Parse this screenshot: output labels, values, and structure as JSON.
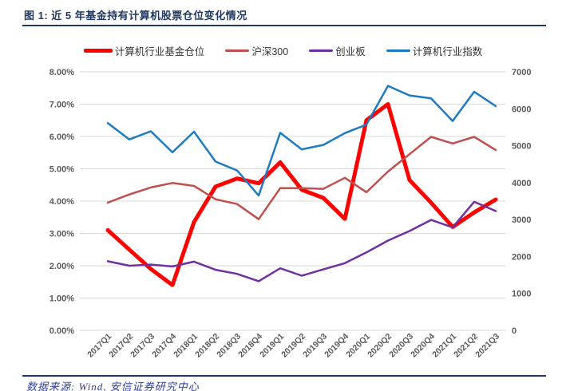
{
  "figure": {
    "title": "图 1: 近 5 年基金持有计算机股票仓位变化情况",
    "source": "数据来源: Wind, 安信证券研究中心"
  },
  "colors": {
    "title_navy": "#1f3864",
    "axis_label_gray": "#595959",
    "gridline": "#d9d9d9",
    "fund_position_red": "#ff0000",
    "csi300_dark_red": "#c0504d",
    "chinext_purple": "#7030a0",
    "computer_index_blue": "#1f7bc0",
    "source_blue": "#2e3f99"
  },
  "chart_data": {
    "type": "line",
    "title": "图 1: 近 5 年基金持有计算机股票仓位变化情况",
    "xlabel": "",
    "ylabel": "",
    "legend_position": "top",
    "grid": "horizontal",
    "categories": [
      "2017Q1",
      "2017Q2",
      "2017Q3",
      "2017Q4",
      "2018Q1",
      "2018Q2",
      "2018Q3",
      "2018Q4",
      "2019Q1",
      "2019Q2",
      "2019Q3",
      "2019Q4",
      "2020Q1",
      "2020Q2",
      "2020Q3",
      "2020Q4",
      "2021Q1",
      "2021Q2",
      "2021Q3"
    ],
    "left_axis": {
      "min": 0,
      "max": 8,
      "tick_labels": [
        "0.00%",
        "1.00%",
        "2.00%",
        "3.00%",
        "4.00%",
        "5.00%",
        "6.00%",
        "7.00%",
        "8.00%"
      ]
    },
    "right_axis": {
      "min": 0,
      "max": 7000,
      "tick_labels": [
        "0",
        "1000",
        "2000",
        "3000",
        "4000",
        "5000",
        "6000",
        "7000"
      ]
    },
    "series": [
      {
        "name": "计算机行业基金仓位",
        "axis": "left",
        "color": "#ff0000",
        "width": 5,
        "values": [
          3.1,
          2.5,
          1.9,
          1.4,
          3.35,
          4.45,
          4.7,
          4.55,
          5.2,
          4.35,
          4.1,
          3.45,
          6.5,
          7.0,
          4.65,
          3.95,
          3.2,
          3.65,
          4.05
        ]
      },
      {
        "name": "沪深300",
        "axis": "right",
        "color": "#c0504d",
        "width": 2.5,
        "values": [
          3460,
          3680,
          3870,
          3990,
          3910,
          3550,
          3420,
          3010,
          3850,
          3850,
          3830,
          4130,
          3740,
          4300,
          4770,
          5240,
          5060,
          5240,
          4880
        ]
      },
      {
        "name": "创业板",
        "axis": "right",
        "color": "#7030a0",
        "width": 2.5,
        "values": [
          1870,
          1750,
          1780,
          1730,
          1860,
          1640,
          1530,
          1330,
          1680,
          1480,
          1650,
          1820,
          2110,
          2430,
          2690,
          2990,
          2790,
          3480,
          3230
        ]
      },
      {
        "name": "计算机行业指数",
        "axis": "right",
        "color": "#1f7bc0",
        "width": 2.5,
        "values": [
          5610,
          5170,
          5390,
          4820,
          5380,
          4570,
          4330,
          3650,
          5350,
          4900,
          5020,
          5340,
          5570,
          6620,
          6360,
          6280,
          5670,
          6460,
          6070
        ]
      }
    ]
  }
}
